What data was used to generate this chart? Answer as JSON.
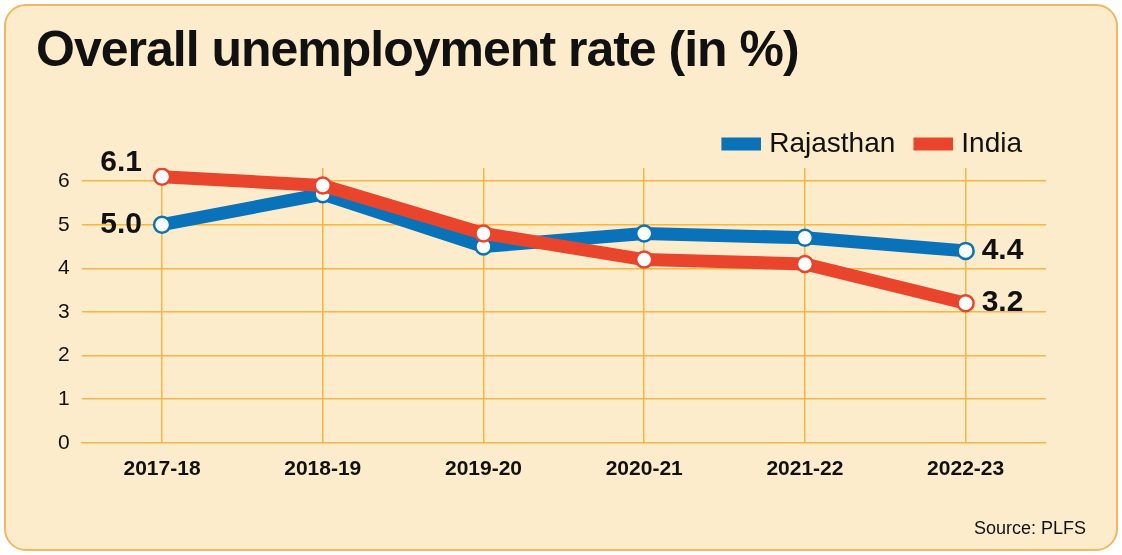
{
  "chart_data": {
    "type": "line",
    "title": "Overall unemployment rate (in %)",
    "categories": [
      "2017-18",
      "2018-19",
      "2019-20",
      "2020-21",
      "2021-22",
      "2022-23"
    ],
    "series": [
      {
        "name": "Rajasthan",
        "color": "#0a72b8",
        "values": [
          5.0,
          5.7,
          4.5,
          4.8,
          4.7,
          4.4
        ],
        "value_labels": [
          "5.0",
          null,
          null,
          null,
          null,
          "4.4"
        ]
      },
      {
        "name": "India",
        "color": "#e8452c",
        "values": [
          6.1,
          5.9,
          4.8,
          4.2,
          4.1,
          3.2
        ],
        "value_labels": [
          "6.1",
          null,
          null,
          null,
          null,
          "3.2"
        ]
      }
    ],
    "ylim": [
      0,
      6.3
    ],
    "yticks": [
      0,
      1,
      2,
      3,
      4,
      5,
      6
    ],
    "grid": true,
    "legend": "top right",
    "marker": "circle",
    "line_style": "solid",
    "annotations": [
      "Source: PLFS"
    ]
  }
}
